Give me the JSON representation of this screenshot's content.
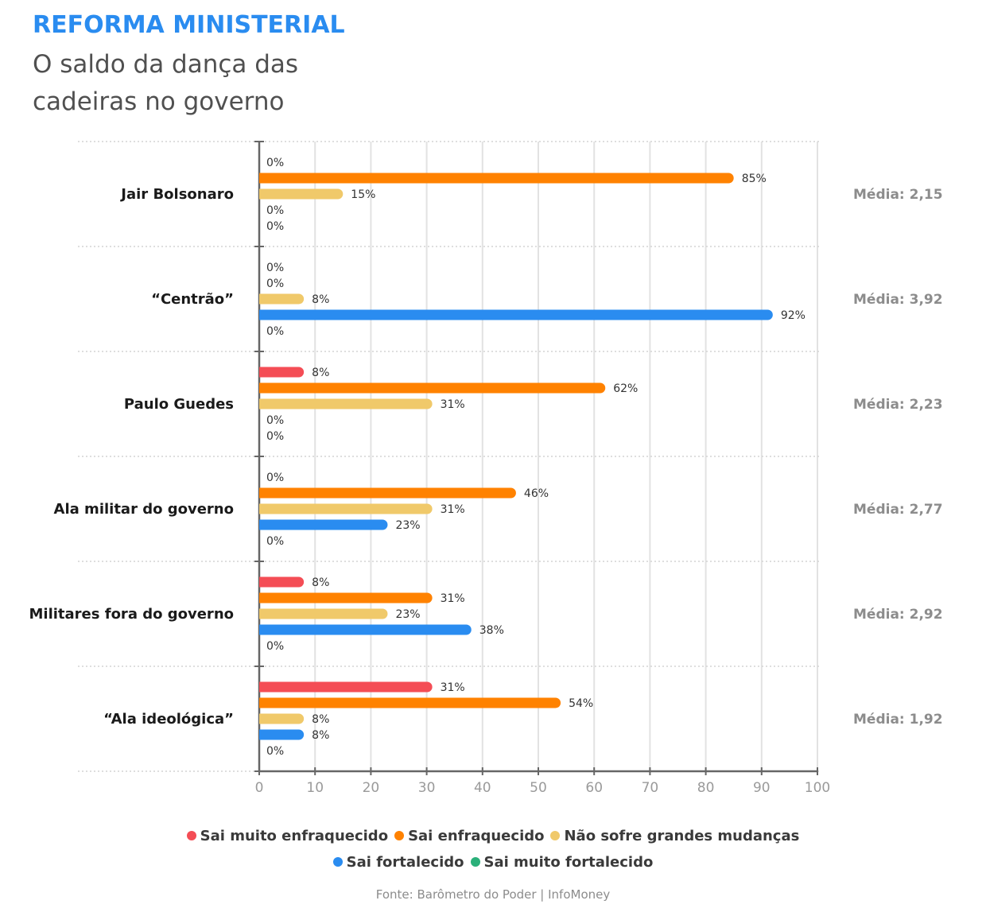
{
  "header": {
    "title": "REFORMA MINISTERIAL",
    "subtitle": "O saldo da dança das cadeiras no governo"
  },
  "chart_data": {
    "type": "bar",
    "orientation": "horizontal",
    "title": "REFORMA MINISTERIAL",
    "subtitle": "O saldo da dança das cadeiras no governo",
    "xlabel": "",
    "ylabel": "",
    "xlim": [
      0,
      100
    ],
    "x_ticks": [
      "0",
      "10",
      "20",
      "30",
      "40",
      "50",
      "60",
      "70",
      "80",
      "90",
      "100"
    ],
    "grid": true,
    "legend_position": "bottom",
    "value_suffix": "%",
    "categories": [
      "Jair Bolsonaro",
      "“Centrão”",
      "Paulo Guedes",
      "Ala militar do governo",
      "Militares fora do governo",
      "“Ala ideológica”"
    ],
    "series": [
      {
        "name": "Sai muito enfraquecido",
        "color": "#f44d55",
        "values": [
          0,
          0,
          8,
          0,
          8,
          31
        ]
      },
      {
        "name": "Sai enfraquecido",
        "color": "#ff8200",
        "values": [
          85,
          0,
          62,
          46,
          31,
          54
        ]
      },
      {
        "name": "Não sofre grandes mudanças",
        "color": "#f0c96a",
        "values": [
          15,
          8,
          31,
          31,
          23,
          8
        ]
      },
      {
        "name": "Sai fortalecido",
        "color": "#2a8cf0",
        "values": [
          0,
          92,
          0,
          23,
          38,
          8
        ]
      },
      {
        "name": "Sai muito fortalecido",
        "color": "#2bb07a",
        "values": [
          0,
          0,
          0,
          0,
          0,
          0
        ]
      }
    ],
    "annotations": [
      "Média: 2,15",
      "Média: 3,92",
      "Média: 2,23",
      "Média: 2,77",
      "Média: 2,92",
      "Média: 1,92"
    ]
  },
  "source": "Fonte: Barômetro do Poder | InfoMoney"
}
